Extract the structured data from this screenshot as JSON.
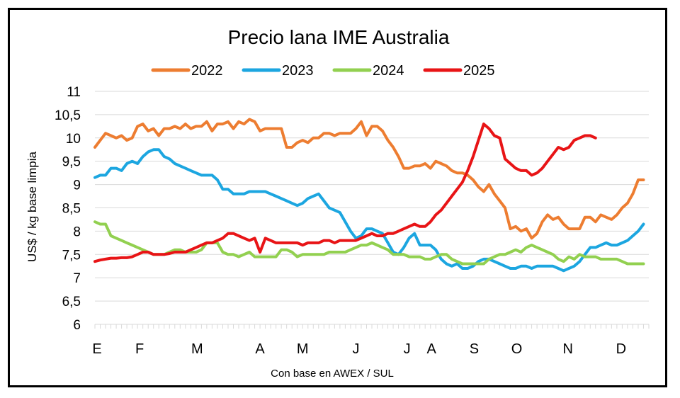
{
  "chart_data": {
    "type": "line",
    "title": "Precio lana IME Australia",
    "ylabel": "US$ / kg base limpia",
    "xlabel": "Con base en AWEX / SUL",
    "ylim": [
      6,
      11
    ],
    "yticks": [
      "6",
      "6,5",
      "7",
      "7,5",
      "8",
      "8,5",
      "9",
      "9,5",
      "10",
      "10,5",
      "11"
    ],
    "xlim": [
      0,
      52
    ],
    "months": [
      {
        "label": "E",
        "pos": 0.2
      },
      {
        "label": "F",
        "pos": 4.2
      },
      {
        "label": "M",
        "pos": 9.6
      },
      {
        "label": "A",
        "pos": 15.5
      },
      {
        "label": "M",
        "pos": 19.5
      },
      {
        "label": "J",
        "pos": 24.5
      },
      {
        "label": "J",
        "pos": 29.3
      },
      {
        "label": "A",
        "pos": 31.6
      },
      {
        "label": "S",
        "pos": 35.6
      },
      {
        "label": "O",
        "pos": 39.6
      },
      {
        "label": "N",
        "pos": 44.4
      },
      {
        "label": "D",
        "pos": 49.4
      }
    ],
    "grid": true,
    "legend_position": "top",
    "series": [
      {
        "name": "2022",
        "color": "#ED7D31",
        "x": [
          0,
          0.5,
          1,
          1.5,
          2,
          2.5,
          3,
          3.5,
          4,
          4.5,
          5,
          5.5,
          6,
          6.5,
          7,
          7.5,
          8,
          8.5,
          9,
          9.5,
          10,
          10.5,
          11,
          11.5,
          12,
          12.5,
          13,
          13.5,
          14,
          14.5,
          15,
          15.5,
          16,
          16.5,
          17,
          17.5,
          18,
          18.5,
          19,
          19.5,
          20,
          20.5,
          21,
          21.5,
          22,
          22.5,
          23,
          23.5,
          24,
          24.5,
          25,
          25.5,
          26,
          26.5,
          27,
          27.5,
          28,
          28.5,
          29,
          29.5,
          30,
          30.5,
          31,
          31.5,
          32,
          32.5,
          33,
          33.5,
          34,
          34.5,
          35,
          35.5,
          36,
          36.5,
          37,
          37.5,
          38,
          38.5,
          39,
          39.5,
          40,
          40.5,
          41,
          41.5,
          42,
          42.5,
          43,
          43.5,
          44,
          44.5,
          45,
          45.5,
          46,
          46.5,
          47,
          47.5,
          48,
          48.5,
          49,
          49.5,
          50,
          50.5,
          51,
          51.5
        ],
        "y": [
          9.8,
          9.95,
          10.1,
          10.05,
          10.0,
          10.05,
          9.95,
          10.0,
          10.25,
          10.3,
          10.15,
          10.2,
          10.05,
          10.2,
          10.2,
          10.25,
          10.2,
          10.3,
          10.2,
          10.25,
          10.25,
          10.35,
          10.15,
          10.3,
          10.3,
          10.35,
          10.2,
          10.35,
          10.3,
          10.4,
          10.35,
          10.15,
          10.2,
          10.2,
          10.2,
          10.2,
          9.8,
          9.8,
          9.9,
          9.95,
          9.9,
          10.0,
          10.0,
          10.1,
          10.1,
          10.05,
          10.1,
          10.1,
          10.1,
          10.2,
          10.35,
          10.05,
          10.25,
          10.25,
          10.15,
          9.95,
          9.8,
          9.6,
          9.35,
          9.35,
          9.4,
          9.4,
          9.45,
          9.35,
          9.5,
          9.45,
          9.4,
          9.3,
          9.25,
          9.25,
          9.2,
          9.1,
          8.95,
          8.85,
          9.0,
          8.8,
          8.65,
          8.5,
          8.05,
          8.1,
          8.0,
          8.05,
          7.85,
          7.95,
          8.2,
          8.35,
          8.25,
          8.3,
          8.15,
          8.05,
          8.05,
          8.05,
          8.3,
          8.3,
          8.2,
          8.35,
          8.3,
          8.25,
          8.35,
          8.5,
          8.6,
          8.8,
          9.1,
          9.1
        ]
      },
      {
        "name": "2023",
        "color": "#1CA6E0",
        "x": [
          0,
          0.5,
          1,
          1.5,
          2,
          2.5,
          3,
          3.5,
          4,
          4.5,
          5,
          5.5,
          6,
          6.5,
          7,
          7.5,
          8,
          8.5,
          9,
          9.5,
          10,
          10.5,
          11,
          11.5,
          12,
          12.5,
          13,
          13.5,
          14,
          14.5,
          15,
          15.5,
          16,
          16.5,
          17,
          17.5,
          18,
          18.5,
          19,
          19.5,
          20,
          20.5,
          21,
          21.5,
          22,
          22.5,
          23,
          23.5,
          24,
          24.5,
          25,
          25.5,
          26,
          26.5,
          27,
          27.5,
          28,
          28.5,
          29,
          29.5,
          30,
          30.5,
          31,
          31.5,
          32,
          32.5,
          33,
          33.5,
          34,
          34.5,
          35,
          35.5,
          36,
          36.5,
          37,
          37.5,
          38,
          38.5,
          39,
          39.5,
          40,
          40.5,
          41,
          41.5,
          42,
          42.5,
          43,
          43.5,
          44,
          44.5,
          45,
          45.5,
          46,
          46.5,
          47,
          47.5,
          48,
          48.5,
          49,
          49.5,
          50,
          50.5,
          51,
          51.5
        ],
        "y": [
          9.15,
          9.2,
          9.2,
          9.35,
          9.35,
          9.3,
          9.45,
          9.5,
          9.45,
          9.6,
          9.7,
          9.75,
          9.75,
          9.6,
          9.55,
          9.45,
          9.4,
          9.35,
          9.3,
          9.25,
          9.2,
          9.2,
          9.2,
          9.1,
          8.9,
          8.9,
          8.8,
          8.8,
          8.8,
          8.85,
          8.85,
          8.85,
          8.85,
          8.8,
          8.75,
          8.7,
          8.65,
          8.6,
          8.55,
          8.6,
          8.7,
          8.75,
          8.8,
          8.65,
          8.5,
          8.45,
          8.4,
          8.2,
          8.0,
          7.85,
          7.9,
          8.05,
          8.05,
          8.0,
          7.95,
          7.75,
          7.55,
          7.5,
          7.65,
          7.85,
          7.95,
          7.7,
          7.7,
          7.7,
          7.6,
          7.4,
          7.3,
          7.25,
          7.3,
          7.2,
          7.2,
          7.25,
          7.35,
          7.4,
          7.4,
          7.35,
          7.3,
          7.25,
          7.2,
          7.2,
          7.25,
          7.25,
          7.2,
          7.25,
          7.25,
          7.25,
          7.25,
          7.2,
          7.15,
          7.2,
          7.25,
          7.35,
          7.5,
          7.65,
          7.65,
          7.7,
          7.75,
          7.7,
          7.7,
          7.75,
          7.8,
          7.9,
          8.0,
          8.15
        ]
      },
      {
        "name": "2024",
        "color": "#92D050",
        "x": [
          0,
          0.5,
          1,
          1.5,
          2,
          2.5,
          3,
          3.5,
          4,
          4.5,
          5,
          5.5,
          6,
          6.5,
          7,
          7.5,
          8,
          8.5,
          9,
          9.5,
          10,
          10.5,
          11,
          11.5,
          12,
          12.5,
          13,
          13.5,
          14,
          14.5,
          15,
          15.5,
          16,
          16.5,
          17,
          17.5,
          18,
          18.5,
          19,
          19.5,
          20,
          20.5,
          21,
          21.5,
          22,
          22.5,
          23,
          23.5,
          24,
          24.5,
          25,
          25.5,
          26,
          26.5,
          27,
          27.5,
          28,
          28.5,
          29,
          29.5,
          30,
          30.5,
          31,
          31.5,
          32,
          32.5,
          33,
          33.5,
          34,
          34.5,
          35,
          35.5,
          36,
          36.5,
          37,
          37.5,
          38,
          38.5,
          39,
          39.5,
          40,
          40.5,
          41,
          41.5,
          42,
          42.5,
          43,
          43.5,
          44,
          44.5,
          45,
          45.5,
          46,
          46.5,
          47,
          47.5,
          48,
          48.5,
          49,
          49.5,
          50,
          50.5,
          51,
          51.5
        ],
        "y": [
          8.2,
          8.15,
          8.15,
          7.9,
          7.85,
          7.8,
          7.75,
          7.7,
          7.65,
          7.6,
          7.55,
          7.5,
          7.5,
          7.5,
          7.55,
          7.6,
          7.6,
          7.55,
          7.55,
          7.55,
          7.6,
          7.75,
          7.75,
          7.75,
          7.55,
          7.5,
          7.5,
          7.45,
          7.5,
          7.55,
          7.45,
          7.45,
          7.45,
          7.45,
          7.45,
          7.6,
          7.6,
          7.55,
          7.45,
          7.5,
          7.5,
          7.5,
          7.5,
          7.5,
          7.55,
          7.55,
          7.55,
          7.55,
          7.6,
          7.65,
          7.7,
          7.7,
          7.75,
          7.7,
          7.65,
          7.6,
          7.5,
          7.5,
          7.5,
          7.45,
          7.45,
          7.45,
          7.4,
          7.4,
          7.45,
          7.5,
          7.5,
          7.4,
          7.35,
          7.3,
          7.3,
          7.3,
          7.3,
          7.3,
          7.4,
          7.45,
          7.5,
          7.5,
          7.55,
          7.6,
          7.55,
          7.65,
          7.7,
          7.65,
          7.6,
          7.55,
          7.5,
          7.4,
          7.35,
          7.45,
          7.4,
          7.5,
          7.45,
          7.45,
          7.45,
          7.4,
          7.4,
          7.4,
          7.4,
          7.35,
          7.3,
          7.3,
          7.3,
          7.3
        ]
      },
      {
        "name": "2025",
        "color": "#E81416",
        "x": [
          0,
          0.5,
          1,
          1.5,
          2,
          2.5,
          3,
          3.5,
          4,
          4.5,
          5,
          5.5,
          6,
          6.5,
          7,
          7.5,
          8,
          8.5,
          9,
          9.5,
          10,
          10.5,
          11,
          11.5,
          12,
          12.5,
          13,
          13.5,
          14,
          14.5,
          15,
          15.5,
          16,
          16.5,
          17,
          17.5,
          18,
          18.5,
          19,
          19.5,
          20,
          20.5,
          21,
          21.5,
          22,
          22.5,
          23,
          23.5,
          24,
          24.5,
          25,
          25.5,
          26,
          26.5,
          27,
          27.5,
          28,
          28.5,
          29,
          29.5,
          30,
          30.5,
          31,
          31.5,
          32,
          32.5,
          33,
          33.5,
          34,
          34.5,
          35,
          35.5,
          36,
          36.5,
          37,
          37.5,
          38,
          38.5,
          39,
          39.5,
          40,
          40.5,
          41,
          41.5,
          42,
          42.5,
          43,
          43.5,
          44,
          44.5,
          45,
          45.5,
          46,
          46.5,
          47
        ],
        "y": [
          7.35,
          7.38,
          7.4,
          7.42,
          7.42,
          7.43,
          7.43,
          7.45,
          7.5,
          7.55,
          7.55,
          7.5,
          7.5,
          7.5,
          7.52,
          7.55,
          7.55,
          7.55,
          7.6,
          7.65,
          7.7,
          7.75,
          7.75,
          7.8,
          7.85,
          7.95,
          7.95,
          7.9,
          7.85,
          7.8,
          7.85,
          7.55,
          7.85,
          7.8,
          7.75,
          7.75,
          7.75,
          7.75,
          7.75,
          7.7,
          7.75,
          7.75,
          7.75,
          7.8,
          7.8,
          7.75,
          7.8,
          7.8,
          7.8,
          7.8,
          7.85,
          7.9,
          7.95,
          7.9,
          7.9,
          7.95,
          7.95,
          8.0,
          8.05,
          8.1,
          8.15,
          8.1,
          8.1,
          8.2,
          8.35,
          8.45,
          8.6,
          8.75,
          8.9,
          9.05,
          9.3,
          9.6,
          9.95,
          10.3,
          10.2,
          10.05,
          10.0,
          9.55,
          9.45,
          9.35,
          9.3,
          9.3,
          9.2,
          9.25,
          9.35,
          9.5,
          9.65,
          9.8,
          9.75,
          9.8,
          9.95,
          10.0,
          10.05,
          10.05,
          10.0
        ]
      }
    ]
  }
}
